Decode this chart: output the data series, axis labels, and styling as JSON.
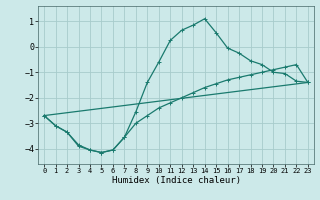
{
  "xlabel": "Humidex (Indice chaleur)",
  "bg_color": "#cce9e9",
  "line_color": "#1a7a6e",
  "grid_color": "#a8cccc",
  "xlim": [
    -0.5,
    23.5
  ],
  "ylim": [
    -4.6,
    1.6
  ],
  "yticks": [
    -4,
    -3,
    -2,
    -1,
    0,
    1
  ],
  "xticks": [
    0,
    1,
    2,
    3,
    4,
    5,
    6,
    7,
    8,
    9,
    10,
    11,
    12,
    13,
    14,
    15,
    16,
    17,
    18,
    19,
    20,
    21,
    22,
    23
  ],
  "curve1_x": [
    0,
    1,
    2,
    3,
    4,
    5,
    6,
    7,
    8,
    9,
    10,
    11,
    12,
    13,
    14,
    15,
    16,
    17,
    18,
    19,
    20,
    21,
    22,
    23
  ],
  "curve1_y": [
    -2.7,
    -3.1,
    -3.35,
    -3.9,
    -4.05,
    -4.15,
    -4.05,
    -3.55,
    -2.55,
    -1.4,
    -0.6,
    0.25,
    0.65,
    0.85,
    1.1,
    0.55,
    -0.05,
    -0.25,
    -0.55,
    -0.7,
    -1.0,
    -1.05,
    -1.35,
    -1.4
  ],
  "curve2_x": [
    0,
    1,
    2,
    3,
    4,
    5,
    6,
    7,
    8,
    9,
    10,
    11,
    12,
    13,
    14,
    15,
    16,
    17,
    18,
    19,
    20,
    21,
    22,
    23
  ],
  "curve2_y": [
    -2.7,
    -3.1,
    -3.35,
    -3.85,
    -4.05,
    -4.15,
    -4.05,
    -3.55,
    -3.0,
    -2.7,
    -2.4,
    -2.2,
    -2.0,
    -1.8,
    -1.6,
    -1.45,
    -1.3,
    -1.2,
    -1.1,
    -1.0,
    -0.9,
    -0.8,
    -0.7,
    -1.4
  ],
  "curve3_x": [
    0,
    23
  ],
  "curve3_y": [
    -2.7,
    -1.4
  ]
}
